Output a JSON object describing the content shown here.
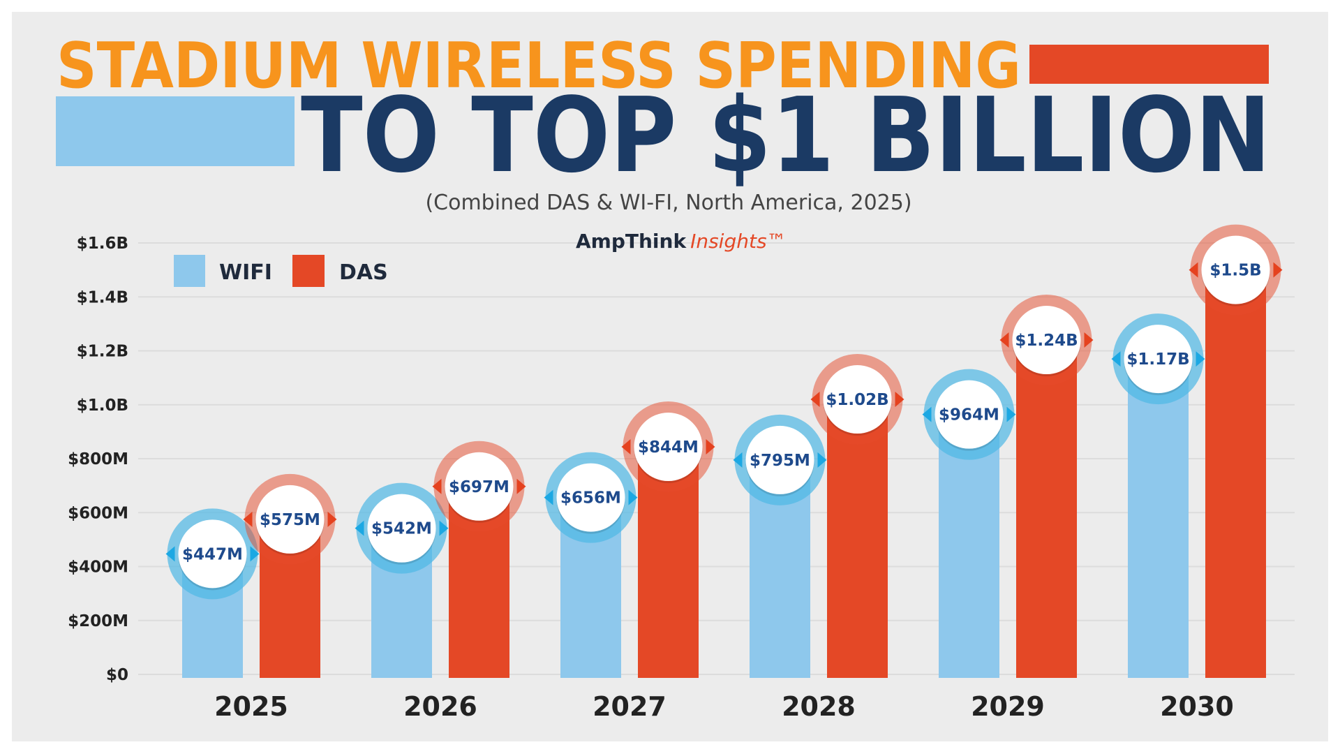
{
  "title": {
    "line1": "STADIUM WIRELESS SPENDING",
    "line2": "TO TOP $1 BILLION",
    "subtitle": "(Combined DAS & WI-FI, North America, 2025)"
  },
  "brand": {
    "name": "AmpThink",
    "suffix": "Insights™"
  },
  "colors": {
    "orange": "#f7941d",
    "navy": "#1b3a64",
    "wifi": "#8ec8ec",
    "wifi_ring": "#4fb8e6",
    "wifi_accent": "#1ca8e3",
    "das": "#e44826",
    "das_ring": "#e5492a",
    "das_accent": "#e5421f",
    "background": "#ececec"
  },
  "chart_data": {
    "type": "bar",
    "categories": [
      "2025",
      "2026",
      "2027",
      "2028",
      "2029",
      "2030"
    ],
    "series": [
      {
        "name": "WIFI",
        "values": [
          447,
          542,
          656,
          795,
          964,
          1170
        ],
        "labels": [
          "$447M",
          "$542M",
          "$656M",
          "$795M",
          "$964M",
          "$1.17B"
        ]
      },
      {
        "name": "DAS",
        "values": [
          575,
          697,
          844,
          1020,
          1240,
          1500
        ],
        "labels": [
          "$575M",
          "$697M",
          "$844M",
          "$1.02B",
          "$1.24B",
          "$1.5B"
        ]
      }
    ],
    "unit": "millions USD",
    "ylim": [
      0,
      1600
    ],
    "yticks": [
      0,
      200,
      400,
      600,
      800,
      1000,
      1200,
      1400,
      1600
    ],
    "ytick_labels": [
      "$0",
      "$200M",
      "$400M",
      "$600M",
      "$800M",
      "$1.0B",
      "$1.2B",
      "$1.4B",
      "$1.6B"
    ],
    "grid": true,
    "legend": "top-left"
  }
}
